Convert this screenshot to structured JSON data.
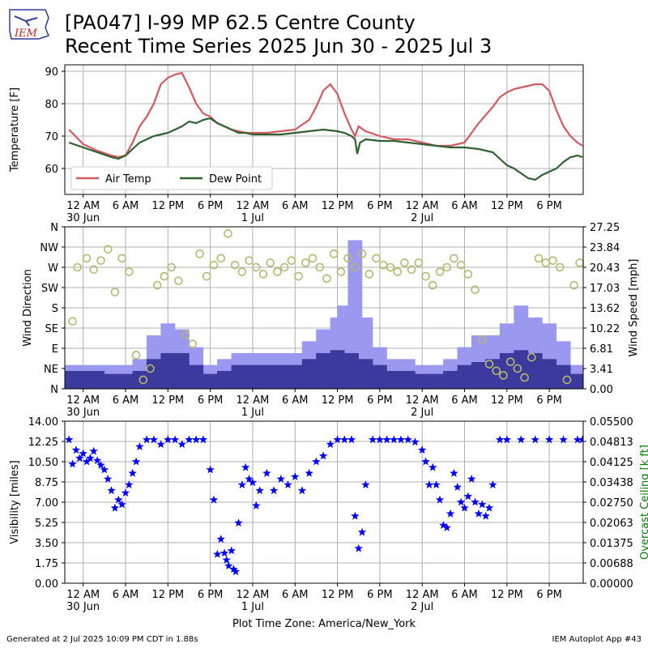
{
  "header": {
    "title_line1": "[PA047] I-99 MP 62.5 Centre County",
    "title_line2": "Recent Time Series 2025 Jun 30 - 2025 Jul 3",
    "logo_text": "IEM"
  },
  "footer": {
    "timezone": "Plot Time Zone: America/New_York",
    "generated": "Generated at 2 Jul 2025 10:09 PM CDT in 1.88s",
    "app": "IEM Autoplot App #43"
  },
  "colors": {
    "air_temp": "#d6585f",
    "dew_point": "#2f6130",
    "gust_bar": "#9b98f0",
    "speed_bar": "#3d3a9e",
    "wind_dir": "#b6b86e",
    "visibility": "#0000ff",
    "ceiling_axis": "#008000",
    "grid": "#b0b0b0"
  },
  "chart_data": [
    {
      "type": "line",
      "ylabel": "Temperature [F]",
      "ylim": [
        52,
        92
      ],
      "yticks": [
        60,
        70,
        80,
        90
      ],
      "xtick_labels": [
        "12 AM\n30 Jun",
        "6 AM",
        "12 PM",
        "6 PM",
        "12 AM\n1 Jul",
        "6 AM",
        "12 PM",
        "6 PM",
        "12 AM\n2 Jul",
        "6 AM",
        "12 PM",
        "6 PM"
      ],
      "grid": true,
      "legend_placement": "lower-left",
      "series": [
        {
          "name": "Air Temp",
          "x_hours": [
            -2,
            0,
            2,
            4,
            5,
            6,
            7,
            8,
            9,
            10,
            11,
            12,
            13,
            14,
            15,
            16,
            17,
            18,
            19,
            20,
            21,
            22,
            23,
            24,
            26,
            28,
            30,
            32,
            33,
            34,
            35,
            36,
            37,
            38,
            38.5,
            39,
            40,
            42,
            44,
            46,
            48,
            50,
            52,
            54,
            56,
            58,
            59,
            60,
            61,
            62,
            63,
            64,
            65,
            66,
            67,
            68,
            69,
            70,
            70.7
          ],
          "y": [
            72,
            67.5,
            65.5,
            64,
            63.5,
            64,
            68,
            73,
            76,
            80,
            86,
            88,
            89,
            89.5,
            85,
            80,
            77,
            76,
            74,
            73,
            72,
            71.5,
            71,
            71,
            71,
            71.5,
            72,
            75,
            79,
            84,
            86,
            83,
            77,
            72,
            70,
            73,
            71.5,
            70,
            69,
            69,
            68,
            67,
            67,
            68,
            74,
            79,
            82,
            83.5,
            84.5,
            85,
            85.5,
            86,
            86,
            84,
            78,
            73,
            70,
            68,
            67
          ]
        },
        {
          "name": "Dew Point",
          "x_hours": [
            -2,
            0,
            2,
            4,
            5,
            6,
            7,
            8,
            9,
            10,
            11,
            12,
            13,
            14,
            15,
            16,
            17,
            18,
            19,
            20,
            21,
            22,
            23,
            24,
            26,
            28,
            30,
            32,
            34,
            36,
            37,
            38,
            38.5,
            38.8,
            39.2,
            40,
            42,
            44,
            46,
            48,
            50,
            52,
            54,
            56,
            58,
            59,
            60,
            61,
            62,
            63,
            64,
            65,
            66,
            67,
            68,
            69,
            70,
            70.7
          ],
          "y": [
            68,
            66.5,
            65,
            63.5,
            63,
            64,
            66,
            68,
            69,
            70,
            70.5,
            71,
            72,
            73,
            74.5,
            74,
            75,
            75.5,
            74,
            73,
            72,
            71,
            71,
            70.5,
            70.5,
            70.5,
            71,
            71.5,
            72,
            71.5,
            71,
            70,
            69,
            64.5,
            68,
            69,
            68.5,
            68.5,
            68,
            67.5,
            67,
            66.5,
            66.5,
            66,
            65,
            63,
            61,
            60,
            58.5,
            57,
            56.5,
            58,
            59,
            60,
            62,
            63.5,
            64,
            63.5
          ]
        }
      ]
    },
    {
      "type": "bar",
      "ylabel": "Wind Direction",
      "y2label": "Wind Speed [mph]",
      "direction_ticks": [
        "N",
        "NE",
        "E",
        "SE",
        "S",
        "SW",
        "W",
        "NW",
        "N"
      ],
      "ylim_speed": [
        0,
        27.25
      ],
      "speed_ticks": [
        "0.00",
        "3.41",
        "6.81",
        "10.22",
        "13.62",
        "17.03",
        "20.43",
        "23.84",
        "27.25"
      ],
      "xtick_labels": [
        "12 AM\n30 Jun",
        "6 AM",
        "12 PM",
        "6 PM",
        "12 AM\n1 Jul",
        "6 AM",
        "12 PM",
        "6 PM",
        "12 AM\n2 Jul",
        "6 AM",
        "12 PM",
        "6 PM"
      ],
      "grid": true,
      "gust_hours": [
        -2,
        0,
        2,
        4,
        6,
        8,
        10,
        12,
        14,
        16,
        18,
        20,
        22,
        24,
        26,
        28,
        30,
        32,
        34,
        36,
        37,
        38,
        38.5,
        40,
        42,
        44,
        46,
        48,
        50,
        52,
        54,
        56,
        58,
        60,
        62,
        64,
        66,
        68,
        70
      ],
      "gust_mph": [
        4,
        4,
        4,
        4,
        4,
        5,
        9,
        11,
        10,
        7,
        4,
        5,
        6,
        6,
        6,
        6,
        6,
        8,
        10,
        12,
        14,
        13,
        25,
        12,
        7,
        5,
        5,
        4,
        4,
        5,
        7,
        9,
        9,
        11,
        14,
        12,
        11,
        8,
        4
      ],
      "speed_hours": [
        -2,
        0,
        2,
        4,
        6,
        8,
        10,
        12,
        14,
        16,
        18,
        20,
        22,
        24,
        26,
        28,
        30,
        32,
        34,
        36,
        38,
        40,
        42,
        44,
        46,
        48,
        50,
        52,
        54,
        56,
        58,
        60,
        62,
        64,
        66,
        68,
        70
      ],
      "speed_mph": [
        3,
        3,
        3,
        2.5,
        2.5,
        3,
        5,
        6,
        6,
        4,
        2.5,
        3,
        4,
        4,
        4,
        4,
        4,
        5,
        6,
        6.5,
        6,
        5,
        4,
        3,
        3,
        2.5,
        2.5,
        3,
        4,
        4.5,
        5,
        6,
        6.5,
        6,
        5,
        4,
        2.5
      ],
      "direction_hours": [
        -1.5,
        -0.8,
        0.5,
        1.5,
        2.5,
        3.5,
        4.5,
        5.5,
        6.5,
        7.5,
        8.5,
        9.5,
        10.5,
        11.5,
        12.5,
        13.5,
        14.5,
        15.5,
        16.5,
        17.5,
        18.5,
        19.5,
        20.5,
        21.5,
        22.5,
        23.5,
        24.5,
        25.5,
        26.5,
        27.5,
        28.5,
        29.5,
        30.5,
        31.5,
        32.5,
        33.5,
        34.5,
        35.5,
        36.5,
        37.5,
        38.5,
        39.5,
        40.5,
        41.5,
        42.5,
        43.5,
        44.5,
        45.5,
        46.5,
        47.5,
        48.5,
        49.5,
        50.5,
        51.5,
        52.5,
        53.5,
        54.5,
        55.5,
        56.5,
        57.5,
        58.5,
        59.5,
        60.5,
        61.5,
        62.5,
        63.5,
        64.5,
        65.5,
        66.5,
        67.5,
        68.5,
        69.5,
        70.3
      ],
      "direction_deg": [
        150,
        270,
        290,
        265,
        285,
        310,
        215,
        290,
        260,
        75,
        20,
        45,
        230,
        250,
        270,
        240,
        120,
        100,
        300,
        250,
        275,
        290,
        345,
        275,
        260,
        285,
        270,
        255,
        280,
        260,
        270,
        285,
        250,
        280,
        290,
        270,
        245,
        300,
        260,
        290,
        270,
        300,
        255,
        290,
        275,
        270,
        260,
        280,
        265,
        280,
        250,
        230,
        260,
        270,
        290,
        275,
        255,
        220,
        110,
        55,
        40,
        30,
        60,
        45,
        25,
        70,
        290,
        280,
        285,
        270,
        20,
        230,
        280
      ]
    },
    {
      "type": "scatter",
      "ylabel": "Visibility [miles]",
      "y2label": "Overcast Ceiling [k ft]",
      "ylim": [
        0,
        14
      ],
      "yticks": [
        "0.00",
        "1.75",
        "3.50",
        "5.25",
        "7.00",
        "8.75",
        "10.50",
        "12.25",
        "14.00"
      ],
      "y2lim": [
        0,
        0.055
      ],
      "y2ticks": [
        "0.00000",
        "0.00688",
        "0.01375",
        "0.02063",
        "0.02750",
        "0.03438",
        "0.04125",
        "0.04813",
        "0.05500"
      ],
      "xtick_labels": [
        "12 AM\n30 Jun",
        "6 AM",
        "12 PM",
        "6 PM",
        "12 AM\n1 Jul",
        "6 AM",
        "12 PM",
        "6 PM",
        "12 AM\n2 Jul",
        "6 AM",
        "12 PM",
        "6 PM"
      ],
      "grid": true,
      "marker": "star",
      "x_hours": [
        -2,
        -1.5,
        -1,
        -0.5,
        0,
        0.5,
        1,
        1.5,
        2,
        2.5,
        3,
        3.5,
        4,
        4.5,
        5,
        5.5,
        6,
        6.5,
        7,
        7.5,
        8,
        9,
        10,
        11,
        12,
        13,
        14,
        15,
        16,
        17,
        18,
        18.5,
        19,
        19.5,
        20,
        20.3,
        20.6,
        21,
        21.3,
        21.6,
        22,
        22.5,
        23,
        23.5,
        24,
        24.5,
        25,
        26,
        27,
        28,
        29,
        30,
        31,
        32,
        33,
        34,
        35,
        36,
        37,
        38,
        38.5,
        39,
        39.5,
        40,
        41,
        42,
        43,
        44,
        45,
        46,
        47,
        48,
        48.5,
        49,
        49.5,
        50,
        50.5,
        51,
        51.5,
        52,
        52.5,
        53,
        53.5,
        54,
        54.5,
        55,
        55.5,
        56,
        56.5,
        57,
        57.5,
        58,
        59,
        60,
        62,
        64,
        66,
        68,
        70,
        70.7
      ],
      "y": [
        12.4,
        10.3,
        11.5,
        10.8,
        11.2,
        10.5,
        10.8,
        11.4,
        10.6,
        10.2,
        9.8,
        9.0,
        8.0,
        6.5,
        7.2,
        6.8,
        7.8,
        8.5,
        9.5,
        10.5,
        11.8,
        12.4,
        12.4,
        12.0,
        12.4,
        12.4,
        12.0,
        12.4,
        12.4,
        12.4,
        9.8,
        7.2,
        2.5,
        3.8,
        2.6,
        2.0,
        1.5,
        2.8,
        1.2,
        1.0,
        5.2,
        8.5,
        10.0,
        9.0,
        8.7,
        6.7,
        8.0,
        9.5,
        8.0,
        9.0,
        8.5,
        9.2,
        8.0,
        9.5,
        10.5,
        11.0,
        12.0,
        12.4,
        12.4,
        12.4,
        5.8,
        3.0,
        4.4,
        8.5,
        12.4,
        12.4,
        12.4,
        12.4,
        12.4,
        12.4,
        12.2,
        11.5,
        10.5,
        8.5,
        10.0,
        8.5,
        7.2,
        5.0,
        4.8,
        6.0,
        9.5,
        8.3,
        7.0,
        6.5,
        7.5,
        9.0,
        7.0,
        6.0,
        6.8,
        5.8,
        6.5,
        8.5,
        12.4,
        12.4,
        12.4,
        12.4,
        12.4,
        12.4,
        12.4,
        12.4
      ]
    }
  ]
}
